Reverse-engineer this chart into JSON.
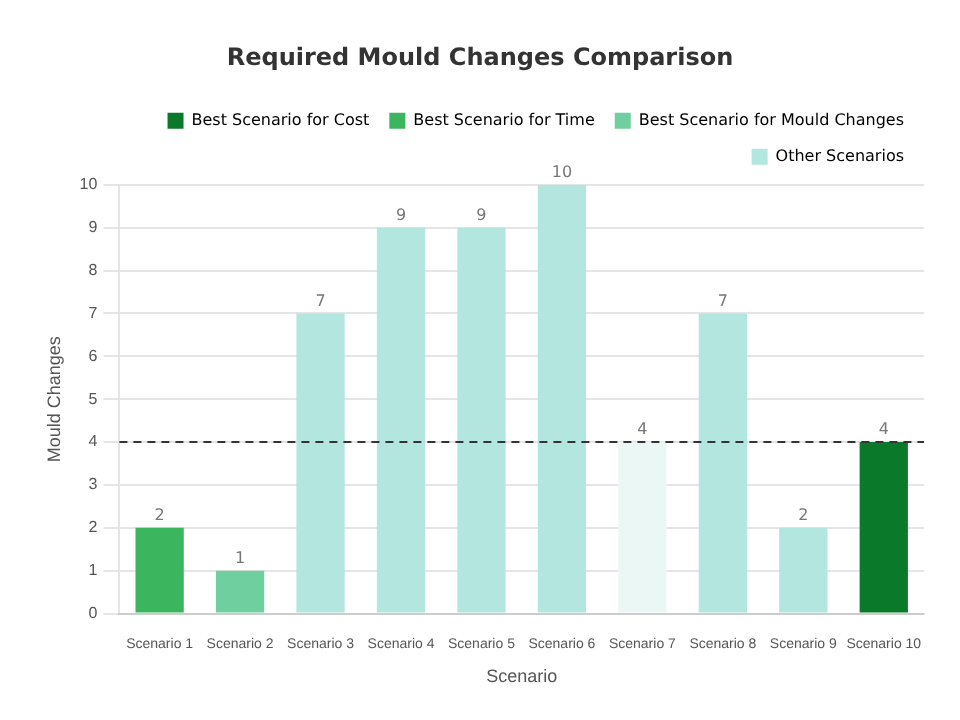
{
  "chart_data": {
    "type": "bar",
    "title": "Required Mould Changes Comparison",
    "xlabel": "Scenario",
    "ylabel": "Mould Changes",
    "categories": [
      "Scenario 1",
      "Scenario 2",
      "Scenario 3",
      "Scenario 4",
      "Scenario 5",
      "Scenario 6",
      "Scenario 7",
      "Scenario 8",
      "Scenario 9",
      "Scenario 10"
    ],
    "series": [
      {
        "name": "Best Scenario for Cost",
        "color": "#0a7a2a",
        "values": [
          null,
          null,
          null,
          null,
          null,
          null,
          null,
          null,
          null,
          4
        ]
      },
      {
        "name": "Best Scenario for Time",
        "color": "#3cb55f",
        "values": [
          2,
          null,
          null,
          null,
          null,
          null,
          null,
          null,
          null,
          null
        ]
      },
      {
        "name": "Best Scenario for Mould Changes",
        "color": "#6fcf9f",
        "values": [
          null,
          1,
          null,
          null,
          null,
          null,
          null,
          null,
          null,
          null
        ]
      },
      {
        "name": "Other Scenarios",
        "color": "#b2e6de",
        "colors": [
          "#b2e6de",
          "#b2e6de",
          "#b2e6de",
          "#b2e6de",
          "#b2e6de",
          "#b2e6de",
          "#eaf7f4",
          "#b2e6de",
          "#b2e6de",
          "#b2e6de"
        ],
        "values": [
          null,
          null,
          7,
          9,
          9,
          10,
          4,
          7,
          2,
          null
        ]
      }
    ],
    "ylim": [
      0,
      10
    ],
    "yticks": [
      0,
      1,
      2,
      3,
      4,
      5,
      6,
      7,
      8,
      9,
      10
    ],
    "grid": "y",
    "legend": "top right",
    "data_labels": true,
    "ref_lines": [
      {
        "axis": "y",
        "value": 4,
        "line_style": "dashed",
        "color": "#333333"
      }
    ]
  }
}
